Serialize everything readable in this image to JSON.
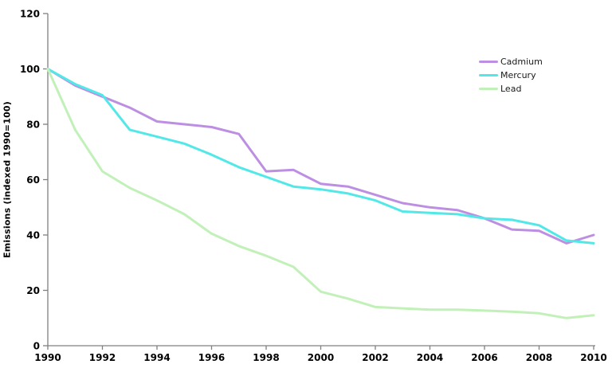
{
  "chart_data": {
    "type": "line",
    "title": "",
    "xlabel": "",
    "ylabel": "Emissions (indexed 1990=100)",
    "xlim": [
      1990,
      2010
    ],
    "ylim": [
      0,
      120
    ],
    "grid": false,
    "legend_position": "upper right",
    "axis_color": "#808080",
    "x": [
      1990,
      1991,
      1992,
      1993,
      1994,
      1995,
      1996,
      1997,
      1998,
      1999,
      2000,
      2001,
      2002,
      2003,
      2004,
      2005,
      2006,
      2007,
      2008,
      2009,
      2010
    ],
    "xticks": [
      1990,
      1992,
      1994,
      1996,
      1998,
      2000,
      2002,
      2004,
      2006,
      2008,
      2010
    ],
    "yticks": [
      0,
      20,
      40,
      60,
      80,
      100,
      120
    ],
    "series": [
      {
        "name": "Cadmium",
        "color": "#bd8fe3",
        "values": [
          100,
          94,
          90,
          86,
          81,
          80,
          79,
          76.5,
          63,
          63.5,
          58.5,
          57.5,
          54.5,
          51.5,
          50,
          49,
          46,
          42,
          41.5,
          37,
          40
        ]
      },
      {
        "name": "Mercury",
        "color": "#52e8e8",
        "values": [
          100,
          94.5,
          90.5,
          78,
          75.5,
          73,
          69,
          64.5,
          61,
          57.5,
          56.5,
          55,
          52.5,
          48.5,
          48,
          47.5,
          46,
          45.5,
          43.5,
          38,
          37
        ]
      },
      {
        "name": "Lead",
        "color": "#c1f1b8",
        "values": [
          100,
          78,
          63,
          57,
          52.5,
          47.5,
          40.5,
          36,
          32.5,
          28.5,
          19.5,
          17,
          14,
          13.5,
          13,
          13,
          12.7,
          12.3,
          11.7,
          10,
          11
        ]
      }
    ]
  }
}
